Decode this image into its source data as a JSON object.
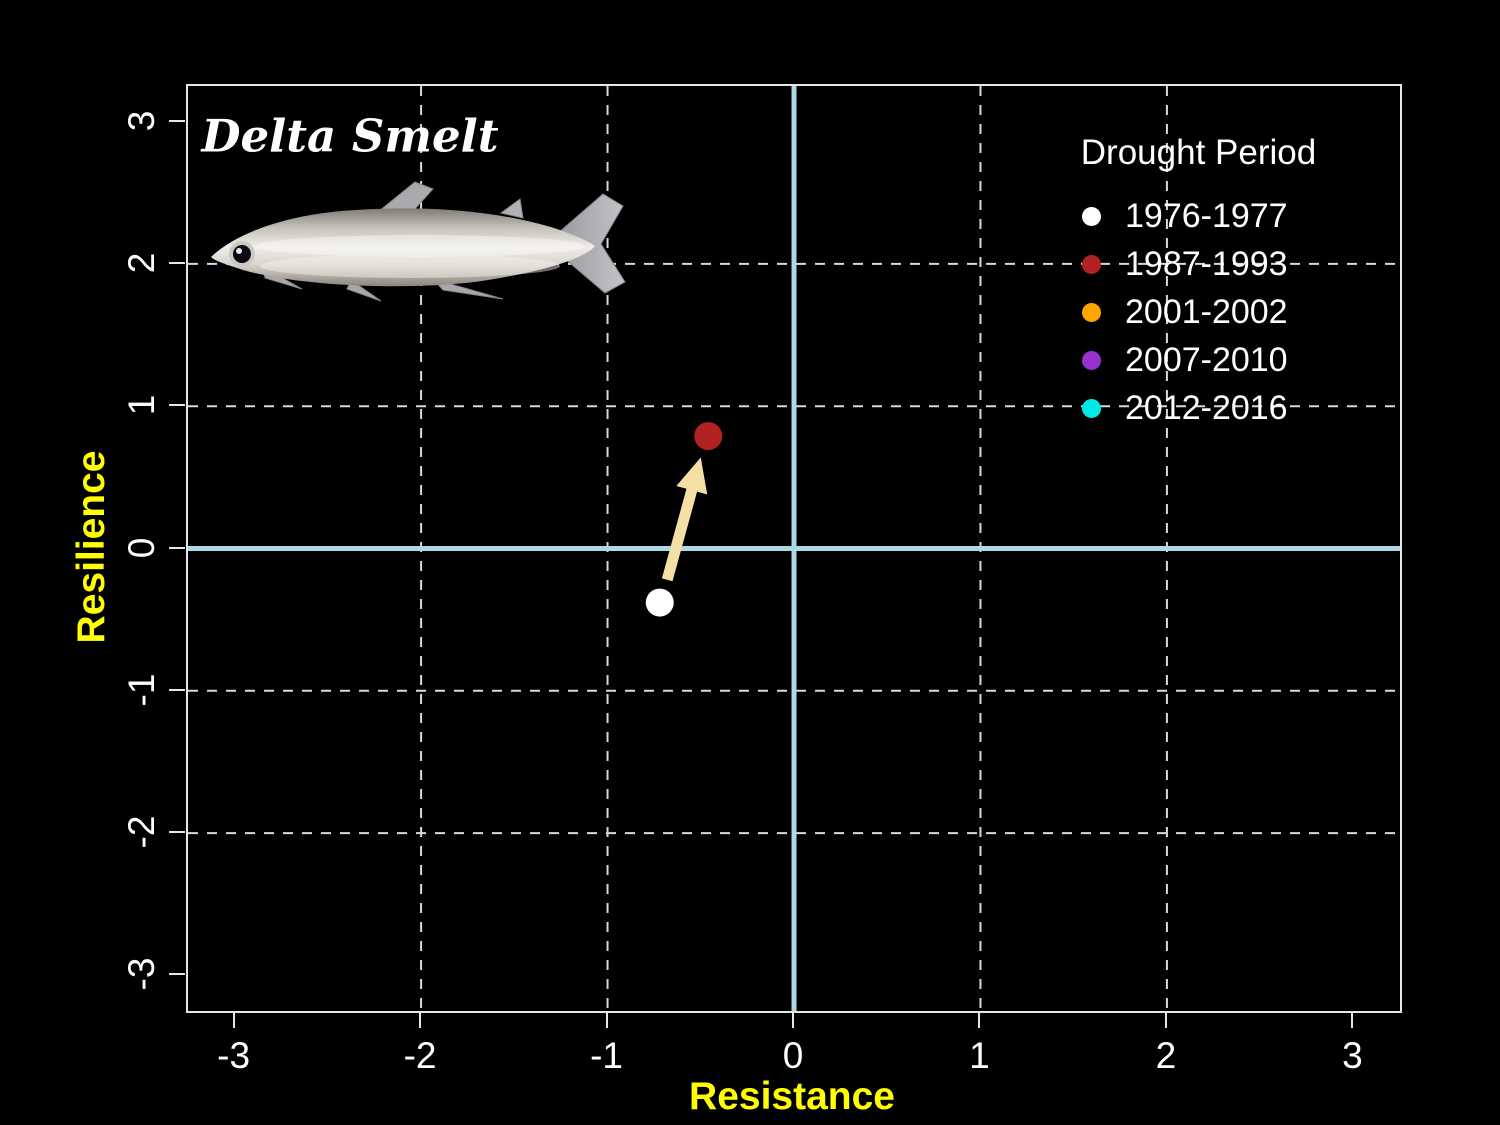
{
  "title": "Delta Smelt",
  "axes": {
    "x_label": "Resistance",
    "y_label": "Resilience",
    "x_tick_labels": [
      "-3",
      "-2",
      "-1",
      "0",
      "1",
      "2",
      "3"
    ],
    "y_tick_labels": [
      "-3",
      "-2",
      "-1",
      "0",
      "1",
      "2",
      "3"
    ]
  },
  "legend": {
    "title": "Drought Period",
    "items": [
      {
        "label": "1976-1977",
        "color": "#FFFFFF"
      },
      {
        "label": "1987-1993",
        "color": "#B22222"
      },
      {
        "label": "2001-2002",
        "color": "#FFA500"
      },
      {
        "label": "2007-2010",
        "color": "#9932CC"
      },
      {
        "label": "2012-2016",
        "color": "#00E8E8"
      }
    ]
  },
  "colors": {
    "background": "#000000",
    "plot_border": "#E6E6E6",
    "grid": "#D9D9D9",
    "zero_lines": "#ADD8E6",
    "tick_labels": "#FFFFFF",
    "axis_titles": "#FFFF00",
    "arrow": "#F4DFA6"
  },
  "chart_data": {
    "type": "scatter",
    "title": "Delta Smelt",
    "xlabel": "Resistance",
    "ylabel": "Resilience",
    "xlim": [
      -3.25,
      3.25
    ],
    "ylim": [
      -3.25,
      3.25
    ],
    "x_ticks": [
      -3,
      -2,
      -1,
      0,
      1,
      2,
      3
    ],
    "y_ticks": [
      -3,
      -2,
      -1,
      0,
      1,
      2,
      3
    ],
    "grid_at": [
      -2,
      -1,
      1,
      2
    ],
    "grid_style": "dashed",
    "zero_axis_lines": true,
    "legend_position": "top-right",
    "series": [
      {
        "name": "1976-1977",
        "color": "#FFFFFF",
        "points": [
          [
            -0.72,
            -0.38
          ]
        ]
      },
      {
        "name": "1987-1993",
        "color": "#B22222",
        "points": [
          [
            -0.46,
            0.79
          ]
        ]
      },
      {
        "name": "2001-2002",
        "color": "#FFA500",
        "points": []
      },
      {
        "name": "2007-2010",
        "color": "#9932CC",
        "points": []
      },
      {
        "name": "2012-2016",
        "color": "#00E8E8",
        "points": []
      }
    ],
    "arrow": {
      "from": [
        -0.68,
        -0.22
      ],
      "to": [
        -0.5,
        0.64
      ],
      "color": "#F4DFA6"
    }
  }
}
